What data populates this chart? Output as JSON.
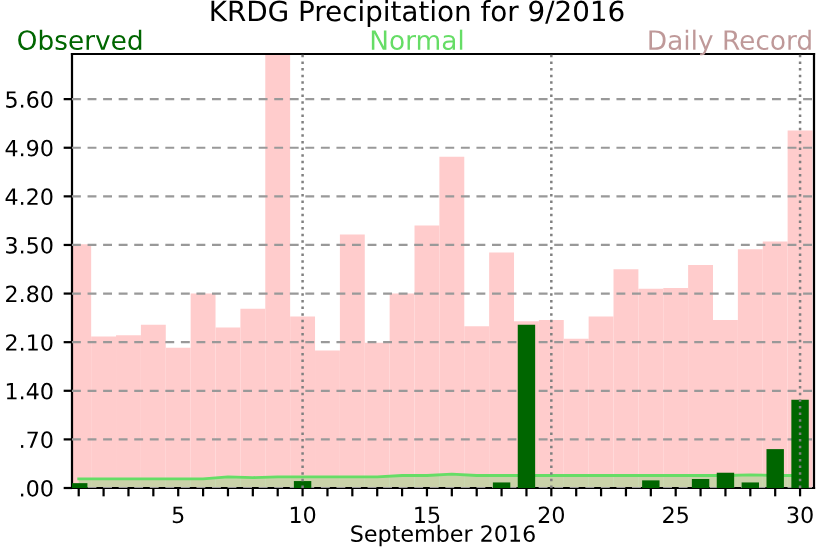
{
  "chart_data": {
    "type": "bar",
    "title": "KRDG Precipitation for 9/2016",
    "xlabel": "September 2016",
    "x": [
      1,
      2,
      3,
      4,
      5,
      6,
      7,
      8,
      9,
      10,
      11,
      12,
      13,
      14,
      15,
      16,
      17,
      18,
      19,
      20,
      21,
      22,
      23,
      24,
      25,
      26,
      27,
      28,
      29,
      30
    ],
    "series": [
      {
        "name": "Daily Record",
        "color": "#ffcccc",
        "values": [
          3.51,
          2.18,
          2.2,
          2.35,
          2.02,
          2.8,
          2.31,
          2.58,
          6.25,
          2.47,
          1.98,
          3.65,
          2.09,
          2.8,
          3.78,
          4.77,
          2.33,
          3.39,
          2.4,
          2.42,
          2.15,
          2.47,
          3.15,
          2.87,
          2.88,
          3.21,
          2.42,
          3.44,
          3.55,
          5.15
        ]
      },
      {
        "name": "Normal",
        "type": "area",
        "color": "#66dd66",
        "values": [
          0.13,
          0.13,
          0.13,
          0.13,
          0.13,
          0.13,
          0.16,
          0.15,
          0.16,
          0.16,
          0.16,
          0.16,
          0.16,
          0.18,
          0.18,
          0.2,
          0.18,
          0.18,
          0.18,
          0.18,
          0.18,
          0.18,
          0.18,
          0.18,
          0.18,
          0.18,
          0.18,
          0.19,
          0.18,
          0.18
        ]
      },
      {
        "name": "Observed",
        "color": "#006600",
        "values": [
          0.07,
          0,
          0,
          0,
          0,
          0,
          0,
          0,
          0,
          0.1,
          0,
          0,
          0,
          0,
          0,
          0,
          0,
          0.08,
          2.35,
          0,
          0,
          0,
          0,
          0.11,
          0,
          0.13,
          0.22,
          0.08,
          0.56,
          1.27
        ]
      }
    ],
    "xlim": [
      0.73,
      30.56
    ],
    "xticks": [
      {
        "value": 1,
        "label": null
      },
      {
        "value": 2,
        "label": null
      },
      {
        "value": 3,
        "label": null
      },
      {
        "value": 4,
        "label": null
      },
      5,
      {
        "value": 6,
        "label": null
      },
      {
        "value": 7,
        "label": null
      },
      {
        "value": 8,
        "label": null
      },
      {
        "value": 9,
        "label": null
      },
      10,
      {
        "value": 11,
        "label": null
      },
      {
        "value": 12,
        "label": null
      },
      {
        "value": 13,
        "label": null
      },
      {
        "value": 14,
        "label": null
      },
      15,
      {
        "value": 16,
        "label": null
      },
      {
        "value": 17,
        "label": null
      },
      {
        "value": 18,
        "label": null
      },
      {
        "value": 19,
        "label": null
      },
      20,
      {
        "value": 21,
        "label": null
      },
      {
        "value": 22,
        "label": null
      },
      {
        "value": 23,
        "label": null
      },
      {
        "value": 24,
        "label": null
      },
      25,
      {
        "value": 26,
        "label": null
      },
      {
        "value": 27,
        "label": null
      },
      {
        "value": 28,
        "label": null
      },
      {
        "value": 29,
        "label": null
      },
      30
    ],
    "ylim": [
      0,
      6.25
    ],
    "yticks": [
      {
        "value": 0,
        "label": ".00"
      },
      {
        "value": 0.7,
        "label": ".70"
      },
      {
        "value": 1.4,
        "label": "1.40"
      },
      {
        "value": 2.1,
        "label": "2.10"
      },
      {
        "value": 2.8,
        "label": "2.80"
      },
      {
        "value": 3.5,
        "label": "3.50"
      },
      {
        "value": 4.2,
        "label": "4.20"
      },
      {
        "value": 4.9,
        "label": "4.90"
      },
      {
        "value": 5.6,
        "label": "5.60"
      }
    ],
    "ref_lines": [
      {
        "axis": "x",
        "value": 10,
        "color": "#808080",
        "line_style": "dotted"
      },
      {
        "axis": "x",
        "value": 20,
        "color": "#808080",
        "line_style": "dotted"
      },
      {
        "axis": "x",
        "value": 30,
        "color": "#808080",
        "line_style": "dotted"
      }
    ],
    "grid": "y",
    "legend": "top"
  }
}
